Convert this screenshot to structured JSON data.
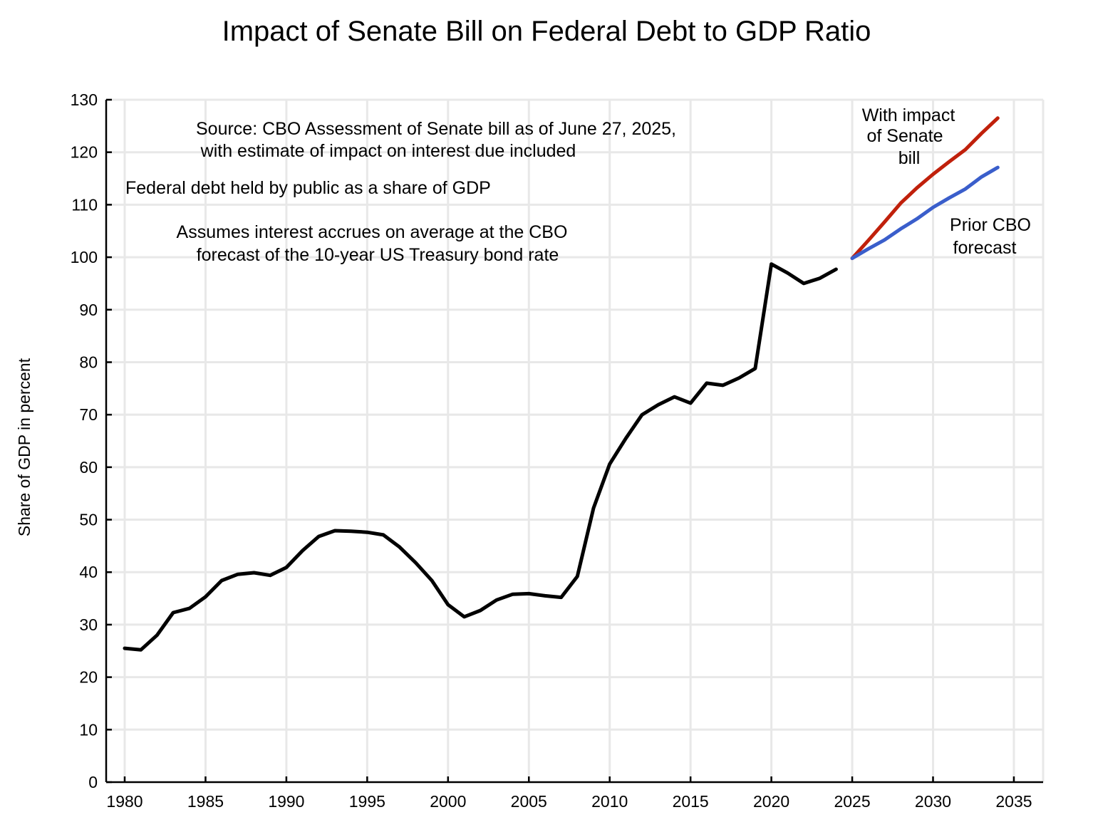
{
  "chart_data": {
    "type": "line",
    "title": "Impact of Senate Bill on Federal Debt to GDP Ratio",
    "xlabel": "",
    "ylabel": "Share of GDP in percent",
    "xlim": [
      1979,
      2037
    ],
    "ylim": [
      0,
      130
    ],
    "xticks": [
      1980,
      1985,
      1990,
      1995,
      2000,
      2005,
      2010,
      2015,
      2020,
      2025,
      2030,
      2035
    ],
    "yticks": [
      0,
      10,
      20,
      30,
      40,
      50,
      60,
      70,
      80,
      90,
      100,
      110,
      120,
      130
    ],
    "grid": true,
    "legend": "none (inline labels)",
    "series": [
      {
        "name": "Historical federal debt held by public",
        "color": "#000000",
        "x": [
          1980,
          1981,
          1982,
          1983,
          1984,
          1985,
          1986,
          1987,
          1988,
          1989,
          1990,
          1991,
          1992,
          1993,
          1994,
          1995,
          1996,
          1997,
          1998,
          1999,
          2000,
          2001,
          2002,
          2003,
          2004,
          2005,
          2006,
          2007,
          2008,
          2009,
          2010,
          2011,
          2012,
          2013,
          2014,
          2015,
          2016,
          2017,
          2018,
          2019,
          2020,
          2021,
          2022,
          2023,
          2024
        ],
        "values": [
          25.5,
          25.2,
          28.0,
          32.3,
          33.1,
          35.3,
          38.4,
          39.6,
          39.9,
          39.4,
          40.9,
          44.1,
          46.8,
          47.9,
          47.8,
          47.6,
          47.1,
          44.8,
          41.8,
          38.4,
          33.8,
          31.5,
          32.7,
          34.7,
          35.8,
          35.9,
          35.5,
          35.2,
          39.2,
          52.2,
          60.6,
          65.5,
          70.0,
          71.9,
          73.4,
          72.2,
          76.0,
          75.6,
          77.0,
          78.8,
          98.7,
          97.0,
          95.0,
          96.0,
          97.7
        ]
      },
      {
        "name": "With impact of Senate bill",
        "color": "#c0200b",
        "x": [
          2025,
          2026,
          2027,
          2028,
          2029,
          2030,
          2031,
          2032,
          2033,
          2034
        ],
        "values": [
          99.8,
          103.2,
          106.7,
          110.3,
          113.2,
          115.8,
          118.2,
          120.5,
          123.6,
          126.5
        ]
      },
      {
        "name": "Prior CBO forecast",
        "color": "#3a5ecb",
        "x": [
          2025,
          2026,
          2027,
          2028,
          2029,
          2030,
          2031,
          2032,
          2033,
          2034
        ],
        "values": [
          99.8,
          101.6,
          103.3,
          105.4,
          107.3,
          109.5,
          111.3,
          113.0,
          115.3,
          117.1
        ]
      }
    ],
    "annotations": {
      "source_line1": "Source:  CBO Assessment of Senate bill as of June 27, 2025,",
      "source_line2": "with estimate of impact on interest due included",
      "measure": "Federal debt held by public as a share of GDP",
      "assumption_line1": "Assumes interest accrues on average at the CBO",
      "assumption_line2": "forecast of the 10-year US Treasury bond rate",
      "senate_label_line1": "With impact",
      "senate_label_line2": "of Senate",
      "senate_label_line3": "bill",
      "prior_label_line1": "Prior CBO",
      "prior_label_line2": "forecast"
    }
  }
}
